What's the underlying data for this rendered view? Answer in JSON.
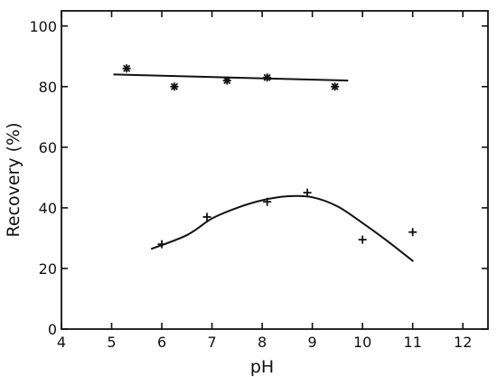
{
  "chart_data": {
    "type": "scatter",
    "title": "",
    "xlabel": "pH",
    "ylabel": "Recovery (%)",
    "xlim": [
      4,
      12.5
    ],
    "ylim": [
      0,
      105
    ],
    "xticks": [
      4,
      5,
      6,
      7,
      8,
      9,
      10,
      11,
      12
    ],
    "yticks": [
      0,
      20,
      40,
      60,
      80,
      100
    ],
    "grid": false,
    "legend": "none",
    "series": [
      {
        "marker": "star",
        "points": [
          {
            "x": 5.3,
            "y": 86
          },
          {
            "x": 6.25,
            "y": 80
          },
          {
            "x": 7.3,
            "y": 82
          },
          {
            "x": 8.1,
            "y": 83
          },
          {
            "x": 9.45,
            "y": 80
          }
        ],
        "fit": [
          {
            "x": 5.05,
            "y": 84
          },
          {
            "x": 9.7,
            "y": 82
          }
        ]
      },
      {
        "marker": "plus",
        "points": [
          {
            "x": 6.0,
            "y": 28
          },
          {
            "x": 6.9,
            "y": 37
          },
          {
            "x": 8.1,
            "y": 42
          },
          {
            "x": 8.9,
            "y": 45
          },
          {
            "x": 10.0,
            "y": 29.5
          },
          {
            "x": 11.0,
            "y": 32
          }
        ],
        "fit": [
          {
            "x": 5.8,
            "y": 26.5
          },
          {
            "x": 6.5,
            "y": 31
          },
          {
            "x": 7.0,
            "y": 36.5
          },
          {
            "x": 7.5,
            "y": 40
          },
          {
            "x": 8.0,
            "y": 42.5
          },
          {
            "x": 8.5,
            "y": 43.8
          },
          {
            "x": 9.0,
            "y": 43.5
          },
          {
            "x": 9.5,
            "y": 40.5
          },
          {
            "x": 10.0,
            "y": 35
          },
          {
            "x": 10.5,
            "y": 29
          },
          {
            "x": 11.0,
            "y": 22.5
          }
        ]
      }
    ]
  },
  "colors": {
    "ink": "#111111",
    "background": "#ffffff"
  }
}
